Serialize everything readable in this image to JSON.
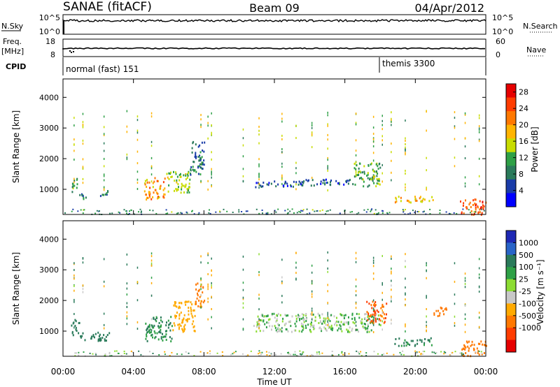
{
  "header": {
    "left_title": "SANAE (fitACF)",
    "center_title": "Beam 09",
    "right_title": "04/Apr/2012"
  },
  "strips": {
    "nsky": {
      "left_label": "N.Sky",
      "right_label": "N.Search",
      "left_ticks": [
        "10^5",
        "10^0"
      ],
      "right_ticks": [
        "10^5",
        "10^0"
      ]
    },
    "freq": {
      "left_label_1": "Freq.",
      "left_label_2": "[MHz]",
      "right_label": "Nave",
      "left_ticks": [
        "18",
        "8"
      ],
      "right_ticks": [
        "60",
        "0"
      ]
    },
    "cpid": {
      "label": "CPID",
      "segments": [
        {
          "name": "normal (fast) 151",
          "start_hour": 0
        },
        {
          "name": "themis 3300",
          "start_hour": 18
        }
      ]
    }
  },
  "x_axis": {
    "label": "Time UT",
    "ticks": [
      "00:00",
      "04:00",
      "08:00",
      "12:00",
      "16:00",
      "20:00",
      "00:00"
    ]
  },
  "colors": {
    "power_scale": [
      "#0000ff",
      "#1a3ca8",
      "#2a7a5a",
      "#2ea046",
      "#c8dc00",
      "#ffb400",
      "#ff7800",
      "#ff3c00",
      "#e60000"
    ],
    "velocity_scale": [
      "#1e28b4",
      "#2864c8",
      "#2a7a5a",
      "#2ea046",
      "#8cdc32",
      "#c8c8c8",
      "#ffaa00",
      "#ff7800",
      "#ff3c00",
      "#e60000"
    ]
  },
  "chart_data": [
    {
      "type": "heatmap",
      "panel": "power",
      "ylabel": "Slant Range [km]",
      "xlabel": "",
      "xlim": [
        0,
        24
      ],
      "ylim": [
        180,
        4600
      ],
      "yticks": [
        "1000",
        "2000",
        "3000",
        "4000"
      ],
      "colorbar": {
        "label": "Power [dB]",
        "ticks": [
          "4",
          "8",
          "12",
          "16",
          "20",
          "24",
          "28"
        ],
        "range": [
          0,
          30
        ]
      },
      "regions": [
        {
          "x": [
            2.1,
            2.6
          ],
          "y": [
            800,
            1000
          ],
          "value": 8
        },
        {
          "x": [
            0.9,
            1.3
          ],
          "y": [
            700,
            900
          ],
          "value": 8
        },
        {
          "x": [
            0.4,
            0.8
          ],
          "y": [
            900,
            1400
          ],
          "value": 10
        },
        {
          "x": [
            4.6,
            5.8
          ],
          "y": [
            700,
            1400
          ],
          "value": 20
        },
        {
          "x": [
            5.8,
            7.2
          ],
          "y": [
            900,
            1600
          ],
          "value": 14
        },
        {
          "x": [
            7.2,
            8.0
          ],
          "y": [
            1500,
            2600
          ],
          "value": 8
        },
        {
          "x": [
            10.8,
            13.5
          ],
          "y": [
            1100,
            1300
          ],
          "value": 6
        },
        {
          "x": [
            13.5,
            16.5
          ],
          "y": [
            1150,
            1350
          ],
          "value": 6
        },
        {
          "x": [
            16.5,
            18.0
          ],
          "y": [
            1100,
            1900
          ],
          "value": 12
        },
        {
          "x": [
            18.8,
            21.0
          ],
          "y": [
            600,
            800
          ],
          "value": 18
        },
        {
          "x": [
            22.5,
            24.0
          ],
          "y": [
            200,
            700
          ],
          "value": 24
        }
      ]
    },
    {
      "type": "heatmap",
      "panel": "velocity",
      "ylabel": "Slant Range [km]",
      "xlabel": "Time UT",
      "xlim": [
        0,
        24
      ],
      "ylim": [
        180,
        4600
      ],
      "yticks": [
        "1000",
        "2000",
        "3000",
        "4000"
      ],
      "colorbar": {
        "label": "Velocity [m s⁻¹]",
        "ticks": [
          "1000",
          "500",
          "100",
          "25",
          "-25",
          "-100",
          "-500",
          "-1000"
        ],
        "range": [
          1000,
          -1000
        ]
      },
      "regions": [
        {
          "x": [
            0.4,
            0.9
          ],
          "y": [
            900,
            1400
          ],
          "value": 100
        },
        {
          "x": [
            0.9,
            2.6
          ],
          "y": [
            700,
            1000
          ],
          "value": 150
        },
        {
          "x": [
            4.6,
            6.2
          ],
          "y": [
            700,
            1500
          ],
          "value": 60
        },
        {
          "x": [
            6.2,
            7.5
          ],
          "y": [
            1000,
            2000
          ],
          "value": -250
        },
        {
          "x": [
            7.5,
            8.0
          ],
          "y": [
            1800,
            2600
          ],
          "value": -400
        },
        {
          "x": [
            10.8,
            18.0
          ],
          "y": [
            1000,
            1600
          ],
          "value": 0
        },
        {
          "x": [
            17.2,
            18.4
          ],
          "y": [
            1300,
            2000
          ],
          "value": -700
        },
        {
          "x": [
            18.8,
            20.9
          ],
          "y": [
            550,
            800
          ],
          "value": 60
        },
        {
          "x": [
            21.0,
            21.8
          ],
          "y": [
            1500,
            1800
          ],
          "value": -600
        },
        {
          "x": [
            22.6,
            24.0
          ],
          "y": [
            200,
            700
          ],
          "value": -400
        }
      ]
    }
  ]
}
